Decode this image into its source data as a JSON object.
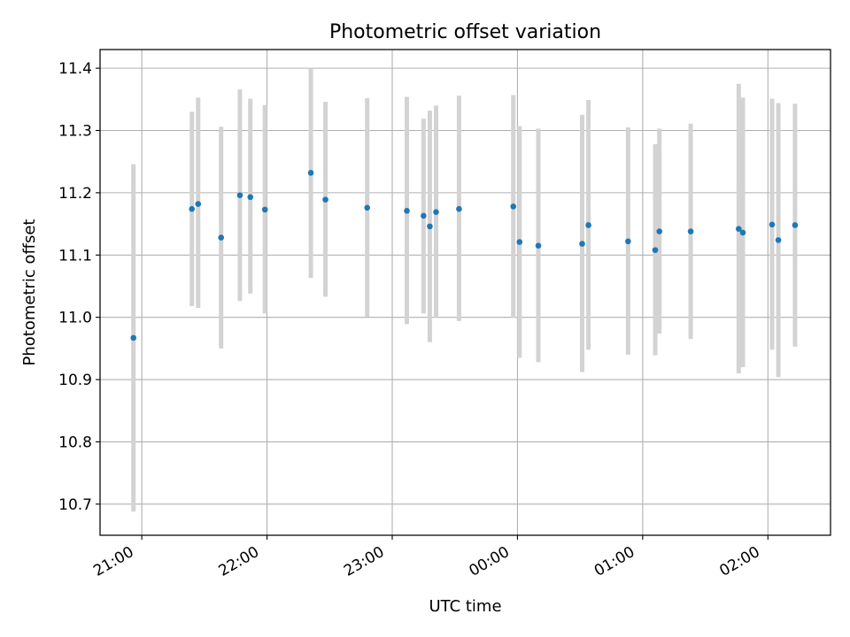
{
  "colors": {
    "point": "#1f77b4",
    "errorbar": "#d3d3d3",
    "grid": "#b0b0b0",
    "axis": "#000000"
  },
  "chart_data": {
    "type": "scatter",
    "title": "Photometric offset variation",
    "xlabel": "UTC time",
    "ylabel": "Photometric offset",
    "grid": true,
    "legend": "none",
    "xlim": [
      "20:40",
      "02:30"
    ],
    "ylim": [
      10.65,
      11.43
    ],
    "xticks": [
      "21:00",
      "22:00",
      "23:00",
      "00:00",
      "01:00",
      "02:00"
    ],
    "yticks": [
      "10.7",
      "10.8",
      "10.9",
      "11.0",
      "11.1",
      "11.2",
      "11.3",
      "11.4"
    ],
    "series": [
      {
        "points": [
          {
            "x": "20:56",
            "y": 10.967,
            "ylo": 10.688,
            "yhi": 11.246
          },
          {
            "x": "21:24",
            "y": 11.174,
            "ylo": 11.018,
            "yhi": 11.33
          },
          {
            "x": "21:27",
            "y": 11.182,
            "ylo": 11.015,
            "yhi": 11.353
          },
          {
            "x": "21:38",
            "y": 11.128,
            "ylo": 10.95,
            "yhi": 11.306
          },
          {
            "x": "21:47",
            "y": 11.196,
            "ylo": 11.026,
            "yhi": 11.366
          },
          {
            "x": "21:52",
            "y": 11.193,
            "ylo": 11.038,
            "yhi": 11.351
          },
          {
            "x": "21:59",
            "y": 11.173,
            "ylo": 11.006,
            "yhi": 11.341
          },
          {
            "x": "22:21",
            "y": 11.232,
            "ylo": 11.063,
            "yhi": 11.4
          },
          {
            "x": "22:28",
            "y": 11.189,
            "ylo": 11.033,
            "yhi": 11.346
          },
          {
            "x": "22:48",
            "y": 11.176,
            "ylo": 11.001,
            "yhi": 11.352
          },
          {
            "x": "23:07",
            "y": 11.171,
            "ylo": 10.989,
            "yhi": 11.354
          },
          {
            "x": "23:15",
            "y": 11.163,
            "ylo": 11.006,
            "yhi": 11.319
          },
          {
            "x": "23:18",
            "y": 11.146,
            "ylo": 10.96,
            "yhi": 11.332
          },
          {
            "x": "23:21",
            "y": 11.169,
            "ylo": 10.999,
            "yhi": 11.34
          },
          {
            "x": "23:32",
            "y": 11.174,
            "ylo": 10.994,
            "yhi": 11.356
          },
          {
            "x": "23:58",
            "y": 11.178,
            "ylo": 10.999,
            "yhi": 11.357
          },
          {
            "x": "00:01",
            "y": 11.121,
            "ylo": 10.935,
            "yhi": 11.307
          },
          {
            "x": "00:10",
            "y": 11.115,
            "ylo": 10.928,
            "yhi": 11.303
          },
          {
            "x": "00:31",
            "y": 11.118,
            "ylo": 10.912,
            "yhi": 11.325
          },
          {
            "x": "00:34",
            "y": 11.148,
            "ylo": 10.948,
            "yhi": 11.349
          },
          {
            "x": "00:53",
            "y": 11.122,
            "ylo": 10.94,
            "yhi": 11.305
          },
          {
            "x": "01:06",
            "y": 11.108,
            "ylo": 10.939,
            "yhi": 11.278
          },
          {
            "x": "01:08",
            "y": 11.138,
            "ylo": 10.974,
            "yhi": 11.303
          },
          {
            "x": "01:23",
            "y": 11.138,
            "ylo": 10.965,
            "yhi": 11.311
          },
          {
            "x": "01:46",
            "y": 11.142,
            "ylo": 10.91,
            "yhi": 11.375
          },
          {
            "x": "01:48",
            "y": 11.136,
            "ylo": 10.92,
            "yhi": 11.353
          },
          {
            "x": "02:02",
            "y": 11.149,
            "ylo": 10.948,
            "yhi": 11.351
          },
          {
            "x": "02:05",
            "y": 11.124,
            "ylo": 10.904,
            "yhi": 11.344
          },
          {
            "x": "02:13",
            "y": 11.148,
            "ylo": 10.953,
            "yhi": 11.343
          }
        ]
      }
    ]
  }
}
